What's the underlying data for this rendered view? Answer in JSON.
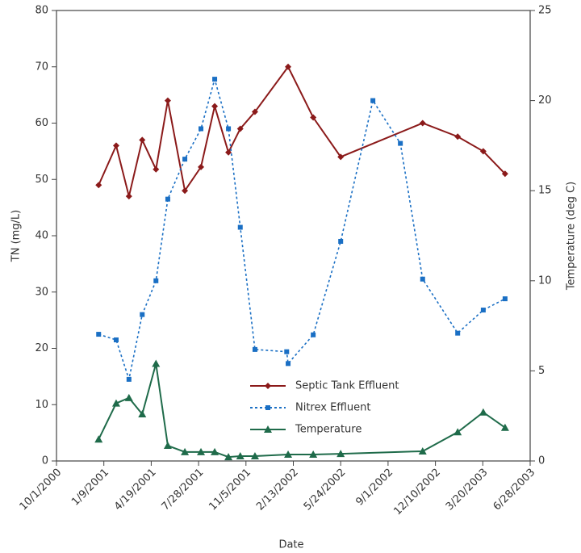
{
  "chart_data": {
    "type": "line",
    "xlabel": "Date",
    "ylabel": "TN (mg/L)",
    "y2label": "Temperature (deg C)",
    "xlim": [
      "10/1/2000",
      "6/28/2003"
    ],
    "xticks": [
      "10/1/2000",
      "1/9/2001",
      "4/19/2001",
      "7/28/2001",
      "11/5/2001",
      "2/13/2002",
      "5/24/2002",
      "9/1/2002",
      "12/10/2002",
      "3/20/2003",
      "6/28/2003"
    ],
    "ylim": [
      0,
      80
    ],
    "yticks": [
      0,
      10,
      20,
      30,
      40,
      50,
      60,
      70,
      80
    ],
    "y2lim": [
      0,
      25
    ],
    "y2ticks": [
      0,
      5,
      10,
      15,
      20,
      25
    ],
    "legend": "lower center",
    "series": [
      {
        "name": "Septic Tank Effluent",
        "color": "#8b1a1a",
        "dash": "solid",
        "marker": "diamond",
        "x": [
          "12/29/2000",
          "2/4/2001",
          "3/3/2001",
          "3/31/2001",
          "4/29/2001",
          "5/24/2001",
          "6/29/2001",
          "8/2/2001",
          "8/31/2001",
          "9/29/2001",
          "10/24/2001",
          "11/24/2001",
          "2/2/2002",
          "3/27/2002",
          "5/24/2002",
          "11/13/2002",
          "1/26/2003",
          "3/21/2003",
          "5/6/2003"
        ],
        "values": [
          49,
          56,
          47,
          57,
          51.8,
          64,
          48,
          52.2,
          63,
          54.8,
          59,
          62,
          70,
          61,
          54,
          60,
          57.6,
          55,
          51
        ]
      },
      {
        "name": "Nitrex Effluent",
        "color": "#1a6fc4",
        "dash": "dotted",
        "marker": "square",
        "x": [
          "12/29/2000",
          "2/4/2001",
          "3/3/2001",
          "3/31/2001",
          "4/29/2001",
          "5/24/2001",
          "6/29/2001",
          "8/2/2001",
          "8/31/2001",
          "9/29/2001",
          "10/24/2001",
          "11/24/2001",
          "1/30/2002",
          "2/2/2002",
          "3/27/2002",
          "5/24/2002",
          "7/31/2002",
          "9/27/2002",
          "11/13/2002",
          "1/26/2003",
          "3/21/2003",
          "5/6/2003"
        ],
        "values": [
          22.5,
          21.5,
          14.5,
          26,
          32,
          46.5,
          53.6,
          59,
          67.8,
          59,
          41.5,
          19.8,
          19.4,
          17.3,
          22.4,
          39,
          64,
          56.4,
          32.3,
          22.7,
          26.8,
          28.8
        ]
      },
      {
        "name": "Temperature",
        "color": "#1f6b4a",
        "dash": "solid",
        "marker": "triangle",
        "axis": "y2",
        "x": [
          "12/29/2000",
          "2/4/2001",
          "3/3/2001",
          "3/31/2001",
          "4/29/2001",
          "5/24/2001",
          "6/29/2001",
          "8/2/2001",
          "8/31/2001",
          "9/29/2001",
          "10/24/2001",
          "11/24/2001",
          "2/2/2002",
          "3/27/2002",
          "5/24/2002",
          "11/13/2002",
          "1/26/2003",
          "3/21/2003",
          "5/6/2003"
        ],
        "values": [
          1.2,
          3.2,
          3.5,
          2.6,
          5.4,
          0.85,
          0.5,
          0.5,
          0.5,
          0.22,
          0.27,
          0.27,
          0.36,
          0.36,
          0.4,
          0.54,
          1.6,
          2.7,
          1.85
        ]
      }
    ]
  }
}
